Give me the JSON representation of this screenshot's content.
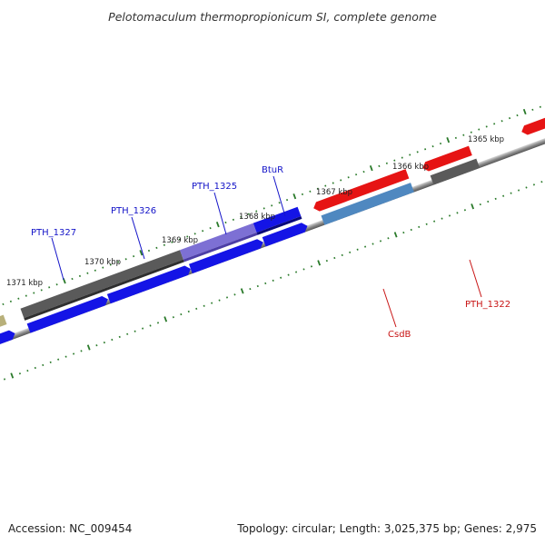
{
  "title": "Pelotomaculum thermopropionicum SI, complete genome",
  "footer": {
    "accession": "Accession: NC_009454",
    "summary": "Topology: circular; Length: 3,025,375 bp; Genes: 2,975"
  },
  "colors": {
    "forward_cds": "#1414e6",
    "reverse_cds": "#e61414",
    "gene_gray": "#5a5a5a",
    "purple": "#7d70d4",
    "steelblue": "#4f88c0",
    "olive": "#b8b07a",
    "tick_green": "#2a7a2a",
    "backbone": "#808080"
  },
  "scale": {
    "labels": [
      "1371 kbp",
      "1370 kbp",
      "1369 kbp",
      "1368 kbp",
      "1367 kbp",
      "1366 kbp",
      "1365 kbp"
    ]
  },
  "gene_labels": [
    {
      "text": "PTH_1327",
      "color": "#1414c8"
    },
    {
      "text": "PTH_1326",
      "color": "#1414c8"
    },
    {
      "text": "PTH_1325",
      "color": "#1414c8"
    },
    {
      "text": "BtuR",
      "color": "#1414c8"
    },
    {
      "text": "CsdB",
      "color": "#c81414"
    },
    {
      "text": "PTH_1322",
      "color": "#c81414"
    }
  ]
}
